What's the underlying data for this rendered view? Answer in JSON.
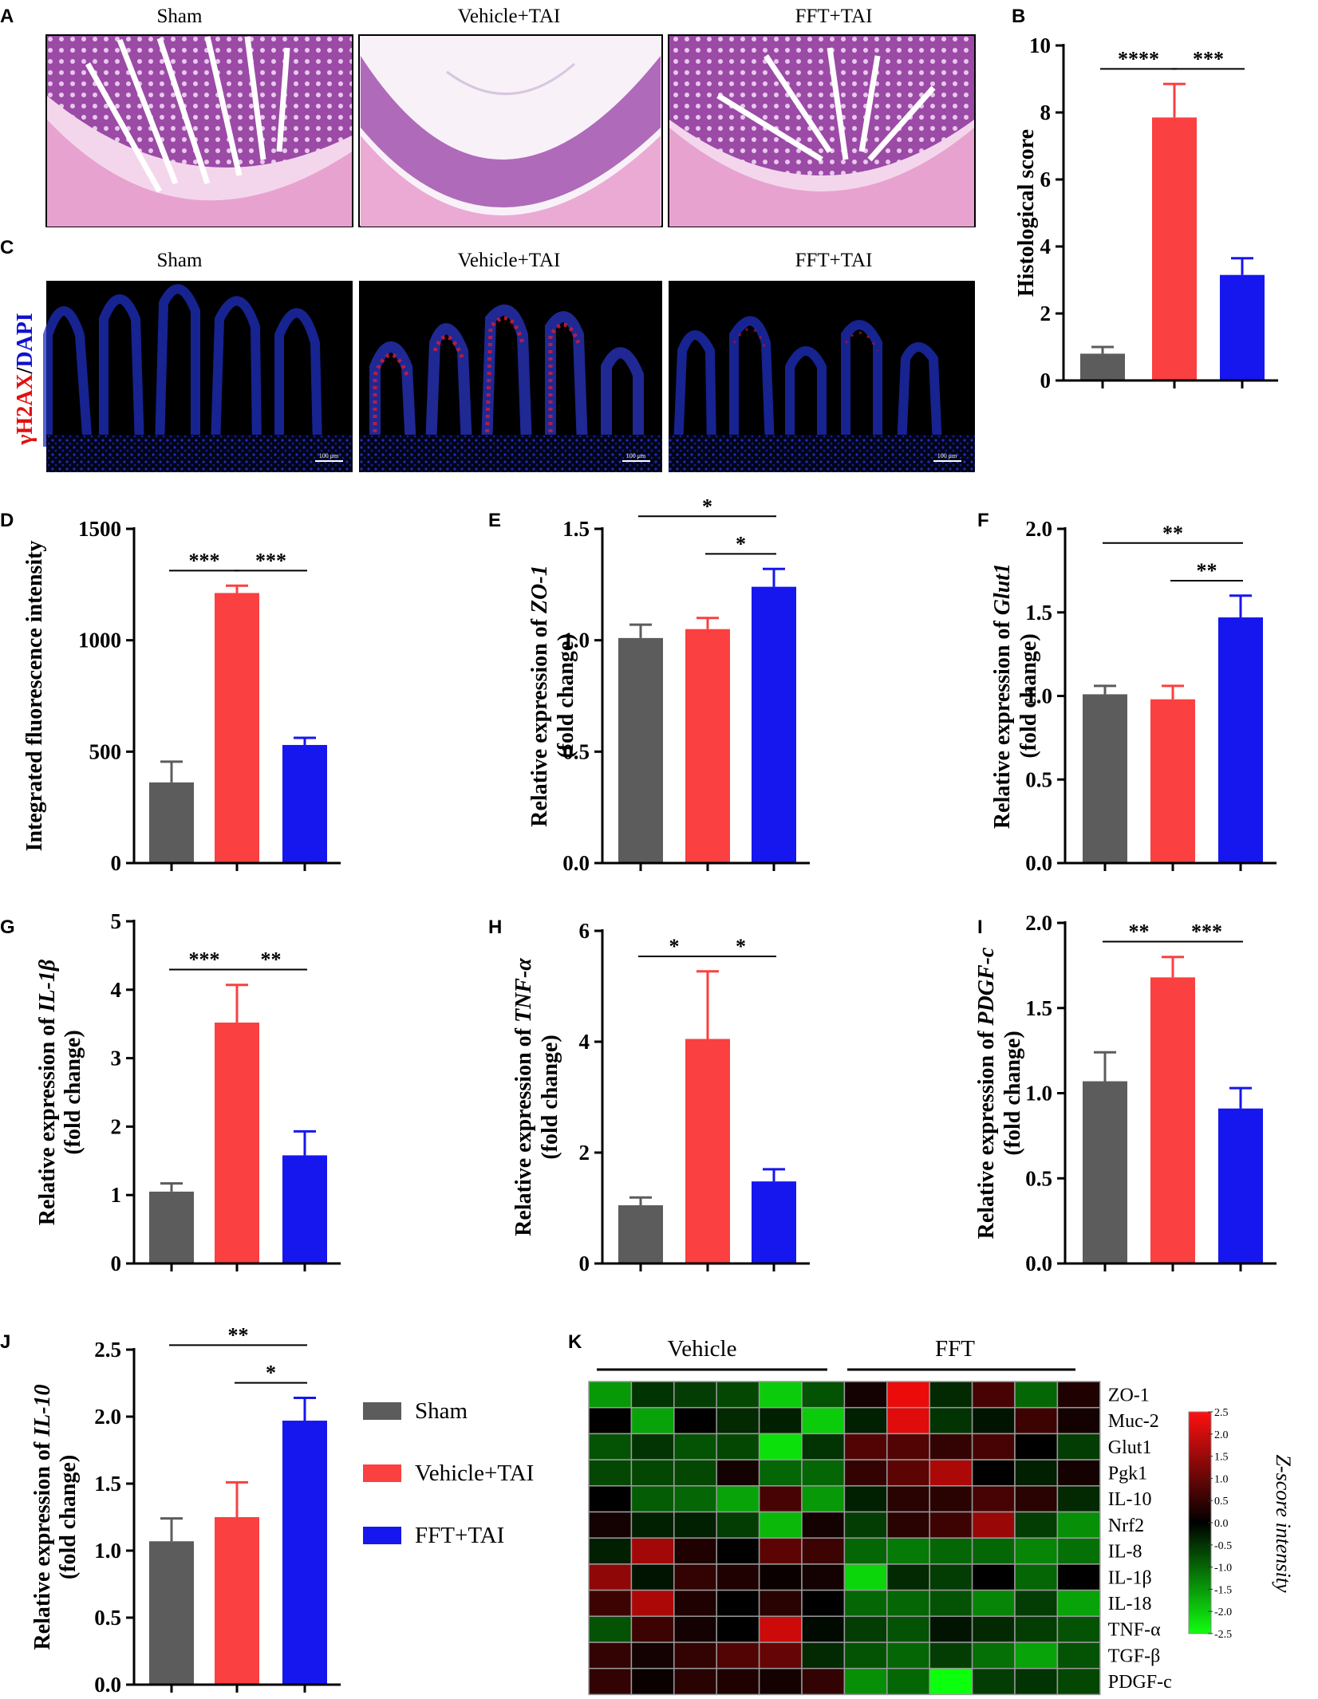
{
  "groups": [
    "Sham",
    "Vehicle+TAI",
    "FFT+TAI"
  ],
  "colors": {
    "sham": "#5c5c5c",
    "vehicle": "#fa4040",
    "fft": "#1616ee"
  },
  "panels": {
    "A": {
      "label": "A",
      "titles": [
        "Sham",
        "Vehicle+TAI",
        "FFT+TAI"
      ]
    },
    "B": {
      "label": "B"
    },
    "C": {
      "label": "C",
      "titles": [
        "Sham",
        "Vehicle+TAI",
        "FFT+TAI"
      ],
      "stain_red": "γH2AX",
      "stain_sep": "/",
      "stain_blue": "DAPI",
      "scale_bar": "100 μm"
    },
    "D": {
      "label": "D"
    },
    "E": {
      "label": "E"
    },
    "F": {
      "label": "F"
    },
    "G": {
      "label": "G"
    },
    "H": {
      "label": "H"
    },
    "I": {
      "label": "I"
    },
    "J": {
      "label": "J"
    },
    "K": {
      "label": "K",
      "group_left": "Vehicle",
      "group_right": "FFT",
      "colorbar_label": "Z-score intensity"
    }
  },
  "legend": [
    "Sham",
    "Vehicle+TAI",
    "FFT+TAI"
  ],
  "chart_data": [
    {
      "id": "B",
      "type": "bar",
      "title": "",
      "ylabel": "Histological score",
      "categories": [
        "Sham",
        "Vehicle+TAI",
        "FFT+TAI"
      ],
      "values": [
        0.8,
        7.85,
        3.15
      ],
      "errors": [
        0.2,
        1.0,
        0.5
      ],
      "ylim": [
        0,
        10
      ],
      "yticks": [
        "0",
        "2",
        "4",
        "6",
        "8",
        "10"
      ],
      "yticks_num": [
        0,
        2,
        4,
        6,
        8,
        10
      ],
      "brackets": [
        {
          "from": 0,
          "to": 1,
          "label": "****"
        },
        {
          "from": 1,
          "to": 2,
          "label": "***"
        }
      ]
    },
    {
      "id": "D",
      "type": "bar",
      "ylabel": "Integrated fluorescence intensity",
      "categories": [
        "Sham",
        "Vehicle+TAI",
        "FFT+TAI"
      ],
      "values": [
        362,
        1212,
        530
      ],
      "errors": [
        93,
        33,
        32
      ],
      "ylim": [
        0,
        1500
      ],
      "yticks": [
        "0",
        "500",
        "1000",
        "1500"
      ],
      "yticks_num": [
        0,
        500,
        1000,
        1500
      ],
      "brackets": [
        {
          "from": 0,
          "to": 1,
          "label": "***"
        },
        {
          "from": 1,
          "to": 2,
          "label": "***"
        }
      ]
    },
    {
      "id": "E",
      "type": "bar",
      "ylabel_pre": "Relative expression of ",
      "ylabel_gene": "ZO-1",
      "ylabel_sub": "(fold change)",
      "categories": [
        "Sham",
        "Vehicle+TAI",
        "FFT+TAI"
      ],
      "values": [
        1.01,
        1.05,
        1.24
      ],
      "errors": [
        0.06,
        0.05,
        0.08
      ],
      "ylim": [
        0,
        1.5
      ],
      "yticks": [
        "0.0",
        "0.5",
        "1.0",
        "1.5"
      ],
      "yticks_num": [
        0,
        0.5,
        1.0,
        1.5
      ],
      "brackets": [
        {
          "from": 0,
          "to": 2,
          "label": "*"
        },
        {
          "from": 1,
          "to": 2,
          "label": "*"
        }
      ]
    },
    {
      "id": "F",
      "type": "bar",
      "ylabel_pre": "Relative expression of ",
      "ylabel_gene": "Glut1",
      "ylabel_sub": "(fold change)",
      "categories": [
        "Sham",
        "Vehicle+TAI",
        "FFT+TAI"
      ],
      "values": [
        1.01,
        0.98,
        1.47
      ],
      "errors": [
        0.05,
        0.08,
        0.13
      ],
      "ylim": [
        0,
        2.0
      ],
      "yticks": [
        "0.0",
        "0.5",
        "1.0",
        "1.5",
        "2.0"
      ],
      "yticks_num": [
        0,
        0.5,
        1.0,
        1.5,
        2.0
      ],
      "brackets": [
        {
          "from": 0,
          "to": 2,
          "label": "**"
        },
        {
          "from": 1,
          "to": 2,
          "label": "**"
        }
      ]
    },
    {
      "id": "G",
      "type": "bar",
      "ylabel_pre": "Relative expression of ",
      "ylabel_gene": "IL-1β",
      "ylabel_sub": "(fold change)",
      "categories": [
        "Sham",
        "Vehicle+TAI",
        "FFT+TAI"
      ],
      "values": [
        1.05,
        3.52,
        1.58
      ],
      "errors": [
        0.12,
        0.55,
        0.35
      ],
      "ylim": [
        0,
        5
      ],
      "yticks": [
        "0",
        "1",
        "2",
        "3",
        "4",
        "5"
      ],
      "yticks_num": [
        0,
        1,
        2,
        3,
        4,
        5
      ],
      "brackets": [
        {
          "from": 0,
          "to": 1,
          "label": "***"
        },
        {
          "from": 1,
          "to": 2,
          "label": "**"
        }
      ]
    },
    {
      "id": "H",
      "type": "bar",
      "ylabel_pre": "Relative expression of ",
      "ylabel_gene": "TNF-α",
      "ylabel_sub": "(fold change)",
      "categories": [
        "Sham",
        "Vehicle+TAI",
        "FFT+TAI"
      ],
      "values": [
        1.05,
        4.05,
        1.48
      ],
      "errors": [
        0.14,
        1.22,
        0.22
      ],
      "ylim": [
        0,
        6
      ],
      "yticks": [
        "0",
        "2",
        "4",
        "6"
      ],
      "yticks_num": [
        0,
        2,
        4,
        6
      ],
      "brackets": [
        {
          "from": 0,
          "to": 1,
          "label": "*"
        },
        {
          "from": 1,
          "to": 2,
          "label": "*"
        }
      ]
    },
    {
      "id": "I",
      "type": "bar",
      "ylabel_pre": "Relative expression of ",
      "ylabel_gene": "PDGF-c",
      "ylabel_sub": "(fold change)",
      "categories": [
        "Sham",
        "Vehicle+TAI",
        "FFT+TAI"
      ],
      "values": [
        1.07,
        1.68,
        0.91
      ],
      "errors": [
        0.17,
        0.12,
        0.12
      ],
      "ylim": [
        0,
        2.0
      ],
      "yticks": [
        "0.0",
        "0.5",
        "1.0",
        "1.5",
        "2.0"
      ],
      "yticks_num": [
        0,
        0.5,
        1.0,
        1.5,
        2.0
      ],
      "brackets": [
        {
          "from": 0,
          "to": 1,
          "label": "**"
        },
        {
          "from": 1,
          "to": 2,
          "label": "***"
        }
      ]
    },
    {
      "id": "J",
      "type": "bar",
      "ylabel_pre": "Relative expression of ",
      "ylabel_gene": "IL-10",
      "ylabel_sub": "(fold change)",
      "categories": [
        "Sham",
        "Vehicle+TAI",
        "FFT+TAI"
      ],
      "values": [
        1.07,
        1.25,
        1.97
      ],
      "errors": [
        0.17,
        0.26,
        0.17
      ],
      "ylim": [
        0,
        2.5
      ],
      "yticks": [
        "0.0",
        "0.5",
        "1.0",
        "1.5",
        "2.0",
        "2.5"
      ],
      "yticks_num": [
        0,
        0.5,
        1.0,
        1.5,
        2.0,
        2.5
      ],
      "brackets": [
        {
          "from": 0,
          "to": 2,
          "label": "**"
        },
        {
          "from": 1,
          "to": 2,
          "label": "*"
        }
      ]
    },
    {
      "id": "K",
      "type": "heatmap",
      "rows": [
        "ZO-1",
        "Muc-2",
        "Glut1",
        "Pgk1",
        "IL-10",
        "Nrf2",
        "IL-8",
        "IL-1β",
        "IL-18",
        "TNF-α",
        "TGF-β",
        "PDGF-c"
      ],
      "columns": [
        "Vehicle",
        "Vehicle",
        "Vehicle",
        "Vehicle",
        "Vehicle",
        "Vehicle",
        "FFT",
        "FFT",
        "FFT",
        "FFT",
        "FFT",
        "FFT"
      ],
      "colorbar_ticks": [
        "2.5",
        "2.0",
        "1.5",
        "1.0",
        "0.5",
        "0.0",
        "-0.5",
        "-1.0",
        "-1.5",
        "-2.0",
        "-2.5"
      ],
      "colorbar_ticks_num": [
        2.5,
        2.0,
        1.5,
        1.0,
        0.5,
        0.0,
        -0.5,
        -1.0,
        -1.5,
        -2.0,
        -2.5
      ],
      "zlim": [
        -2.5,
        2.5
      ],
      "values": [
        [
          -1.5,
          -0.5,
          -0.6,
          -0.7,
          -2.0,
          -0.8,
          0.2,
          2.3,
          -0.4,
          0.7,
          -1.0,
          0.3
        ],
        [
          0.0,
          -1.6,
          0.0,
          -0.4,
          -0.3,
          -2.0,
          -0.3,
          2.2,
          -0.5,
          -0.2,
          0.6,
          0.2
        ],
        [
          -0.8,
          -0.5,
          -0.8,
          -0.7,
          -2.2,
          -0.5,
          0.8,
          0.8,
          0.5,
          0.7,
          0.0,
          -0.6
        ],
        [
          -0.7,
          -0.7,
          -0.7,
          0.2,
          -1.0,
          -1.0,
          0.5,
          0.9,
          1.7,
          0.0,
          -0.3,
          0.2
        ],
        [
          0.0,
          -0.9,
          -1.0,
          -1.6,
          0.7,
          -1.5,
          -0.3,
          0.4,
          0.4,
          0.7,
          0.4,
          -0.4
        ],
        [
          0.2,
          -0.3,
          -0.3,
          -0.6,
          -1.8,
          0.2,
          -0.6,
          0.4,
          0.6,
          1.5,
          -0.6,
          -1.4
        ],
        [
          -0.3,
          1.6,
          0.3,
          0.0,
          0.9,
          0.6,
          -1.0,
          -1.2,
          -1.0,
          -1.0,
          -1.3,
          -1.1
        ],
        [
          1.4,
          -0.2,
          0.5,
          0.3,
          0.1,
          0.2,
          -2.1,
          -0.4,
          -0.6,
          0.0,
          -1.0,
          0.0
        ],
        [
          0.6,
          1.7,
          0.3,
          0.0,
          0.4,
          0.0,
          -1.0,
          -1.0,
          -0.8,
          -1.3,
          -0.6,
          -1.6
        ],
        [
          -0.8,
          0.6,
          0.2,
          0.0,
          2.0,
          -0.1,
          -0.6,
          -0.8,
          -0.2,
          -0.4,
          -0.6,
          -0.8
        ],
        [
          0.5,
          0.2,
          0.5,
          0.8,
          1.0,
          -0.4,
          -0.8,
          -1.0,
          -0.6,
          -1.1,
          -1.6,
          -0.8
        ],
        [
          0.5,
          0.1,
          0.4,
          0.3,
          0.2,
          0.5,
          -1.4,
          -1.0,
          -2.5,
          -0.6,
          -0.5,
          -0.7
        ]
      ]
    }
  ]
}
